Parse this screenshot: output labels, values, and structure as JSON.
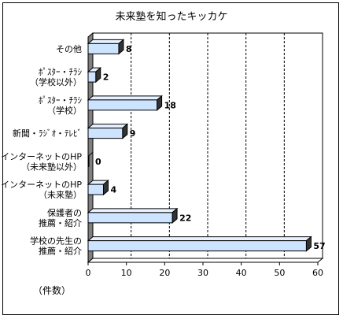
{
  "chart_data": {
    "type": "bar",
    "orientation": "horizontal",
    "title": "未来塾を知ったキッカケ",
    "unit_label": "（件数）",
    "categories": [
      [
        "その他"
      ],
      [
        "ﾎﾟｽﾀｰ・ﾁﾗｼ",
        "（学校以外）"
      ],
      [
        "ﾎﾟｽﾀｰ・ﾁﾗｼ",
        "（学校）"
      ],
      [
        "新聞・ﾗｼﾞｵ・ﾃﾚﾋﾞ"
      ],
      [
        "インターネットのHP",
        "（未来塾以外）"
      ],
      [
        "インターネットのHP",
        "（未来塾）"
      ],
      [
        "保護者の",
        "推薦・紹介"
      ],
      [
        "学校の先生の",
        "推薦・紹介"
      ]
    ],
    "values": [
      8,
      2,
      18,
      9,
      0,
      4,
      22,
      57
    ],
    "xlim": [
      0,
      60
    ],
    "xticks": [
      0,
      10,
      20,
      30,
      40,
      50,
      60
    ],
    "grid": "vertical-dashed",
    "bar_color": "#cce4ff",
    "bar_side_color": "#333333",
    "wall_color": "#808080"
  }
}
